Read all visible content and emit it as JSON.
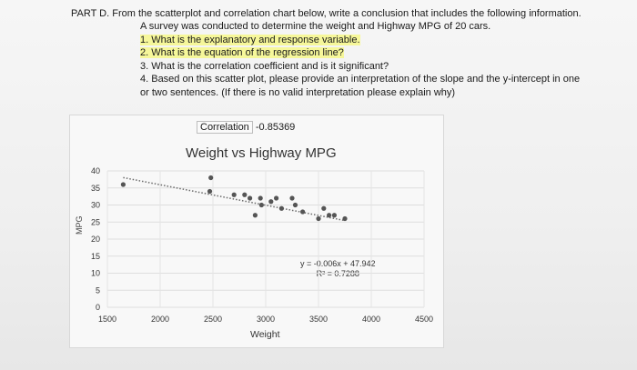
{
  "question": {
    "heading": "PART D. From the scatterplot and correlation chart below, write a conclusion that includes the following information.",
    "intro": "A survey was conducted to determine the weight and Highway MPG of 20 cars.",
    "items": [
      "1. What is the explanatory and response variable.",
      "2. What is the equation of the regression line?",
      "3. What is the correlation coefficient and is it significant?",
      "4. Based on this scatter plot, please provide an interpretation of the slope and the y-intercept in one",
      "or two sentences. (If there is no valid interpretation please explain why)"
    ]
  },
  "correlation": {
    "label": "Correlation",
    "value": "-0.85369"
  },
  "highlight_color": "#f6f79a",
  "chart_data": {
    "type": "scatter",
    "title": "Weight vs Highway MPG",
    "xlabel": "Weight",
    "ylabel": "MPG",
    "xlim": [
      1500,
      4500
    ],
    "ylim": [
      0,
      40
    ],
    "xticks": [
      1500,
      2000,
      2500,
      3000,
      3500,
      4000,
      4500
    ],
    "yticks": [
      0,
      5,
      10,
      15,
      20,
      25,
      30,
      35,
      40
    ],
    "x": [
      1650,
      2480,
      2470,
      2700,
      2800,
      2850,
      2900,
      2950,
      2960,
      3050,
      3100,
      3150,
      3250,
      3280,
      3350,
      3500,
      3550,
      3600,
      3650,
      3750
    ],
    "y": [
      36,
      38,
      34,
      33,
      33,
      32,
      27,
      32,
      30,
      31,
      32,
      29,
      32,
      30,
      28,
      26,
      29,
      27,
      27,
      26
    ],
    "trendline": {
      "equation": "y = -0.006x + 47.942",
      "r_squared": "R² = 0.7288",
      "slope": -0.006,
      "intercept": 47.942,
      "style": "dotted"
    },
    "point_color": "#555555",
    "grid": true
  }
}
